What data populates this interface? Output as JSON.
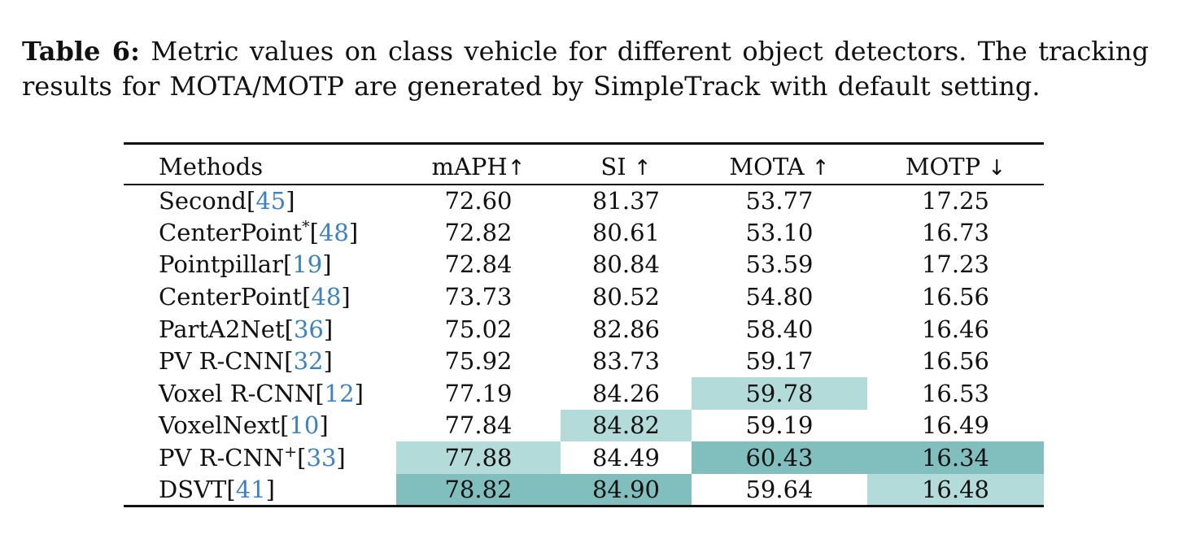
{
  "caption": {
    "label": "Table 6:",
    "text": "Metric values on class vehicle for different object detectors. The tracking results for MOTA/MOTP are generated by SimpleTrack with default setting."
  },
  "table": {
    "headers": {
      "methods": "Methods",
      "maph": "mAPH",
      "maph_arrow": "↑",
      "si": "SI",
      "si_arrow": "↑",
      "mota": "MOTA",
      "mota_arrow": "↑",
      "motp": "MOTP",
      "motp_arrow": "↓"
    },
    "rows": [
      {
        "name": "Second",
        "sup": "",
        "ref": "45",
        "maph": "72.60",
        "si": "81.37",
        "mota": "53.77",
        "motp": "17.25"
      },
      {
        "name": "CenterPoint",
        "sup": "*",
        "ref": "48",
        "maph": "72.82",
        "si": "80.61",
        "mota": "53.10",
        "motp": "16.73"
      },
      {
        "name": "Pointpillar",
        "sup": "",
        "ref": "19",
        "maph": "72.84",
        "si": "80.84",
        "mota": "53.59",
        "motp": "17.23"
      },
      {
        "name": "CenterPoint",
        "sup": "",
        "ref": "48",
        "maph": "73.73",
        "si": "80.52",
        "mota": "54.80",
        "motp": "16.56"
      },
      {
        "name": "PartA2Net",
        "sup": "",
        "ref": "36",
        "maph": "75.02",
        "si": "82.86",
        "mota": "58.40",
        "motp": "16.46"
      },
      {
        "name": "PV R-CNN",
        "sup": "",
        "ref": "32",
        "maph": "75.92",
        "si": "83.73",
        "mota": "59.17",
        "motp": "16.56"
      },
      {
        "name": "Voxel R-CNN",
        "sup": "",
        "ref": "12",
        "maph": "77.19",
        "si": "84.26",
        "mota": "59.78",
        "motp": "16.53"
      },
      {
        "name": "VoxelNext",
        "sup": "",
        "ref": "10",
        "maph": "77.84",
        "si": "84.82",
        "mota": "59.19",
        "motp": "16.49"
      },
      {
        "name": "PV R-CNN",
        "sup": "+",
        "ref": "33",
        "maph": "77.88",
        "si": "84.49",
        "mota": "60.43",
        "motp": "16.34"
      },
      {
        "name": "DSVT",
        "sup": "",
        "ref": "41",
        "maph": "78.82",
        "si": "84.90",
        "mota": "59.64",
        "motp": "16.48"
      }
    ],
    "highlight_colors": {
      "best": "#80bfbd",
      "second": "#b2dbd9"
    }
  }
}
